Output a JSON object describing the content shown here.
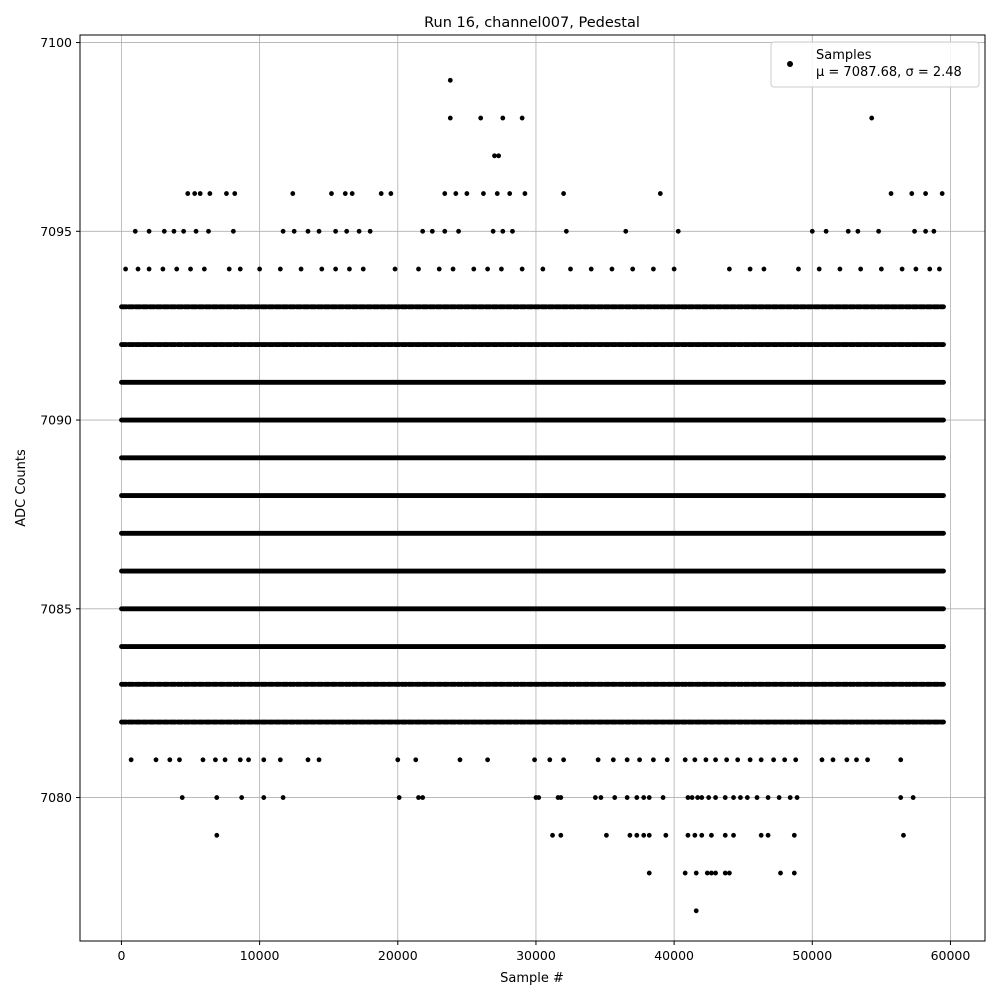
{
  "chart_data": {
    "type": "scatter",
    "title": "Run 16, channel007, Pedestal",
    "xlabel": "Sample #",
    "ylabel": "ADC Counts",
    "xlim": [
      -3000,
      62500
    ],
    "ylim": [
      7076.2,
      7100.2
    ],
    "x_ticks": [
      0,
      10000,
      20000,
      30000,
      40000,
      50000,
      60000
    ],
    "x_tick_labels": [
      "0",
      "10000",
      "20000",
      "30000",
      "40000",
      "50000",
      "60000"
    ],
    "y_ticks": [
      7080,
      7085,
      7090,
      7095,
      7100
    ],
    "y_tick_labels": [
      "7080",
      "7085",
      "7090",
      "7095",
      "7100"
    ],
    "grid": true,
    "legend": {
      "placement": "top-right",
      "entries": [
        {
          "label": "Samples",
          "sublabel": "μ = 7087.68, σ = 2.48"
        }
      ]
    },
    "series": [
      {
        "name": "Samples",
        "color": "#000000",
        "x_range": [
          0,
          59500
        ],
        "mean": 7087.68,
        "std": 2.48,
        "points": [
          [
            23800,
            7099
          ],
          [
            23800,
            7098
          ],
          [
            26000,
            7098
          ],
          [
            27600,
            7098
          ],
          [
            29000,
            7098
          ],
          [
            54300,
            7098
          ],
          [
            27000,
            7097
          ],
          [
            27300,
            7097
          ],
          [
            4800,
            7096
          ],
          [
            5300,
            7096
          ],
          [
            5700,
            7096
          ],
          [
            6400,
            7096
          ],
          [
            7600,
            7096
          ],
          [
            8200,
            7096
          ],
          [
            12400,
            7096
          ],
          [
            15200,
            7096
          ],
          [
            16200,
            7096
          ],
          [
            16700,
            7096
          ],
          [
            18800,
            7096
          ],
          [
            19500,
            7096
          ],
          [
            23400,
            7096
          ],
          [
            24200,
            7096
          ],
          [
            25000,
            7096
          ],
          [
            26200,
            7096
          ],
          [
            27200,
            7096
          ],
          [
            28100,
            7096
          ],
          [
            29200,
            7096
          ],
          [
            32000,
            7096
          ],
          [
            39000,
            7096
          ],
          [
            55700,
            7096
          ],
          [
            57200,
            7096
          ],
          [
            58200,
            7096
          ],
          [
            59400,
            7096
          ],
          [
            1000,
            7095
          ],
          [
            2000,
            7095
          ],
          [
            3100,
            7095
          ],
          [
            3800,
            7095
          ],
          [
            4500,
            7095
          ],
          [
            5400,
            7095
          ],
          [
            6300,
            7095
          ],
          [
            8100,
            7095
          ],
          [
            11700,
            7095
          ],
          [
            12500,
            7095
          ],
          [
            13500,
            7095
          ],
          [
            14300,
            7095
          ],
          [
            15500,
            7095
          ],
          [
            16300,
            7095
          ],
          [
            17200,
            7095
          ],
          [
            18000,
            7095
          ],
          [
            21800,
            7095
          ],
          [
            22500,
            7095
          ],
          [
            23400,
            7095
          ],
          [
            24400,
            7095
          ],
          [
            26900,
            7095
          ],
          [
            27600,
            7095
          ],
          [
            28300,
            7095
          ],
          [
            32200,
            7095
          ],
          [
            36500,
            7095
          ],
          [
            40300,
            7095
          ],
          [
            50000,
            7095
          ],
          [
            51000,
            7095
          ],
          [
            52600,
            7095
          ],
          [
            53300,
            7095
          ],
          [
            54800,
            7095
          ],
          [
            57400,
            7095
          ],
          [
            58200,
            7095
          ],
          [
            58800,
            7095
          ],
          [
            300,
            7094
          ],
          [
            1200,
            7094
          ],
          [
            2000,
            7094
          ],
          [
            3000,
            7094
          ],
          [
            4000,
            7094
          ],
          [
            5000,
            7094
          ],
          [
            6000,
            7094
          ],
          [
            7800,
            7094
          ],
          [
            8600,
            7094
          ],
          [
            10000,
            7094
          ],
          [
            11500,
            7094
          ],
          [
            13000,
            7094
          ],
          [
            14500,
            7094
          ],
          [
            15500,
            7094
          ],
          [
            16500,
            7094
          ],
          [
            17500,
            7094
          ],
          [
            19800,
            7094
          ],
          [
            21500,
            7094
          ],
          [
            23000,
            7094
          ],
          [
            24000,
            7094
          ],
          [
            25500,
            7094
          ],
          [
            26500,
            7094
          ],
          [
            27500,
            7094
          ],
          [
            29000,
            7094
          ],
          [
            30500,
            7094
          ],
          [
            32500,
            7094
          ],
          [
            34000,
            7094
          ],
          [
            35500,
            7094
          ],
          [
            37000,
            7094
          ],
          [
            38500,
            7094
          ],
          [
            40000,
            7094
          ],
          [
            44000,
            7094
          ],
          [
            45500,
            7094
          ],
          [
            46500,
            7094
          ],
          [
            49000,
            7094
          ],
          [
            50500,
            7094
          ],
          [
            52000,
            7094
          ],
          [
            53500,
            7094
          ],
          [
            55000,
            7094
          ],
          [
            56500,
            7094
          ],
          [
            57500,
            7094
          ],
          [
            58500,
            7094
          ],
          [
            59200,
            7094
          ],
          [
            700,
            7081
          ],
          [
            2500,
            7081
          ],
          [
            3500,
            7081
          ],
          [
            4200,
            7081
          ],
          [
            5900,
            7081
          ],
          [
            6800,
            7081
          ],
          [
            7500,
            7081
          ],
          [
            8600,
            7081
          ],
          [
            9200,
            7081
          ],
          [
            10300,
            7081
          ],
          [
            11500,
            7081
          ],
          [
            13500,
            7081
          ],
          [
            14300,
            7081
          ],
          [
            20000,
            7081
          ],
          [
            21300,
            7081
          ],
          [
            24500,
            7081
          ],
          [
            26500,
            7081
          ],
          [
            29900,
            7081
          ],
          [
            31000,
            7081
          ],
          [
            32000,
            7081
          ],
          [
            34500,
            7081
          ],
          [
            35600,
            7081
          ],
          [
            36600,
            7081
          ],
          [
            37500,
            7081
          ],
          [
            38500,
            7081
          ],
          [
            39500,
            7081
          ],
          [
            40800,
            7081
          ],
          [
            41500,
            7081
          ],
          [
            42300,
            7081
          ],
          [
            43000,
            7081
          ],
          [
            43800,
            7081
          ],
          [
            44600,
            7081
          ],
          [
            45500,
            7081
          ],
          [
            46300,
            7081
          ],
          [
            47200,
            7081
          ],
          [
            48000,
            7081
          ],
          [
            48800,
            7081
          ],
          [
            50700,
            7081
          ],
          [
            51500,
            7081
          ],
          [
            52500,
            7081
          ],
          [
            53200,
            7081
          ],
          [
            54000,
            7081
          ],
          [
            56400,
            7081
          ],
          [
            4400,
            7080
          ],
          [
            6900,
            7080
          ],
          [
            8700,
            7080
          ],
          [
            10300,
            7080
          ],
          [
            11700,
            7080
          ],
          [
            20100,
            7080
          ],
          [
            21500,
            7080
          ],
          [
            21800,
            7080
          ],
          [
            30000,
            7080
          ],
          [
            30200,
            7080
          ],
          [
            31600,
            7080
          ],
          [
            31800,
            7080
          ],
          [
            34300,
            7080
          ],
          [
            34700,
            7080
          ],
          [
            35700,
            7080
          ],
          [
            36600,
            7080
          ],
          [
            37300,
            7080
          ],
          [
            37800,
            7080
          ],
          [
            38200,
            7080
          ],
          [
            39200,
            7080
          ],
          [
            41000,
            7080
          ],
          [
            41300,
            7080
          ],
          [
            41700,
            7080
          ],
          [
            42000,
            7080
          ],
          [
            42500,
            7080
          ],
          [
            43000,
            7080
          ],
          [
            43700,
            7080
          ],
          [
            44300,
            7080
          ],
          [
            44800,
            7080
          ],
          [
            45300,
            7080
          ],
          [
            46000,
            7080
          ],
          [
            46800,
            7080
          ],
          [
            47600,
            7080
          ],
          [
            48400,
            7080
          ],
          [
            48900,
            7080
          ],
          [
            56400,
            7080
          ],
          [
            57300,
            7080
          ],
          [
            6900,
            7079
          ],
          [
            31200,
            7079
          ],
          [
            31800,
            7079
          ],
          [
            35100,
            7079
          ],
          [
            36800,
            7079
          ],
          [
            37300,
            7079
          ],
          [
            37800,
            7079
          ],
          [
            38200,
            7079
          ],
          [
            39400,
            7079
          ],
          [
            41000,
            7079
          ],
          [
            41500,
            7079
          ],
          [
            42000,
            7079
          ],
          [
            42700,
            7079
          ],
          [
            43700,
            7079
          ],
          [
            44300,
            7079
          ],
          [
            46300,
            7079
          ],
          [
            46800,
            7079
          ],
          [
            48700,
            7079
          ],
          [
            56600,
            7079
          ],
          [
            38200,
            7078
          ],
          [
            40800,
            7078
          ],
          [
            41600,
            7078
          ],
          [
            42400,
            7078
          ],
          [
            42700,
            7078
          ],
          [
            43000,
            7078
          ],
          [
            43700,
            7078
          ],
          [
            44000,
            7078
          ],
          [
            47700,
            7078
          ],
          [
            48700,
            7078
          ],
          [
            41600,
            7077
          ]
        ]
      }
    ]
  }
}
